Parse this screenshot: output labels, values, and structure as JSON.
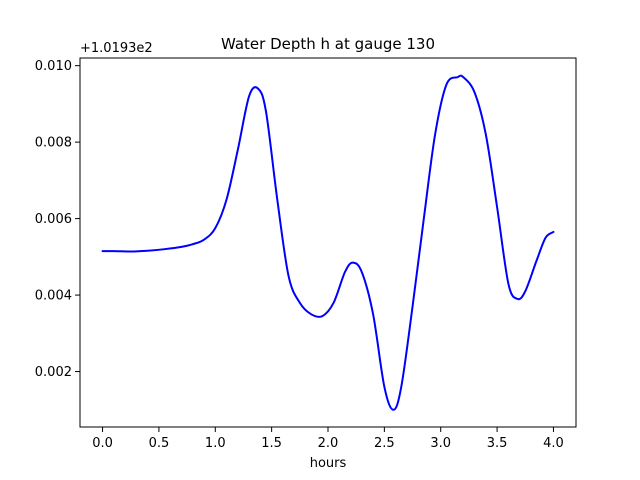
{
  "chart_data": {
    "type": "line",
    "title": "Water Depth h at gauge 130",
    "xlabel": "hours",
    "ylabel": "",
    "offset_label": "+1.0193e2",
    "xlim": [
      -0.2,
      4.2
    ],
    "ylim": [
      0.00055,
      0.0102
    ],
    "x_ticks": [
      0.0,
      0.5,
      1.0,
      1.5,
      2.0,
      2.5,
      3.0,
      3.5,
      4.0
    ],
    "x_tick_labels": [
      "0.0",
      "0.5",
      "1.0",
      "1.5",
      "2.0",
      "2.5",
      "3.0",
      "3.5",
      "4.0"
    ],
    "y_ticks": [
      0.002,
      0.004,
      0.006,
      0.008,
      0.01
    ],
    "y_tick_labels": [
      "0.002",
      "0.004",
      "0.006",
      "0.008",
      "0.010"
    ],
    "grid": false,
    "series": [
      {
        "color": "#0000ff",
        "x": [
          0.0,
          0.1,
          0.25,
          0.4,
          0.55,
          0.7,
          0.8,
          0.9,
          1.0,
          1.1,
          1.2,
          1.3,
          1.38,
          1.45,
          1.55,
          1.65,
          1.75,
          1.85,
          1.95,
          2.05,
          2.15,
          2.22,
          2.3,
          2.4,
          2.5,
          2.58,
          2.65,
          2.75,
          2.85,
          2.95,
          3.05,
          3.15,
          3.2,
          3.3,
          3.4,
          3.5,
          3.6,
          3.68,
          3.75,
          3.85,
          3.93,
          4.0
        ],
        "y": [
          0.00515,
          0.00515,
          0.00514,
          0.00516,
          0.0052,
          0.00526,
          0.00533,
          0.00545,
          0.00575,
          0.0065,
          0.0078,
          0.0092,
          0.0094,
          0.0088,
          0.0065,
          0.0045,
          0.0038,
          0.0035,
          0.00345,
          0.0038,
          0.0046,
          0.00485,
          0.0046,
          0.0035,
          0.0016,
          0.001,
          0.0016,
          0.0037,
          0.006,
          0.0082,
          0.0095,
          0.0097,
          0.0097,
          0.0093,
          0.0082,
          0.0063,
          0.0043,
          0.0039,
          0.0041,
          0.0049,
          0.0055,
          0.00565
        ]
      }
    ]
  }
}
